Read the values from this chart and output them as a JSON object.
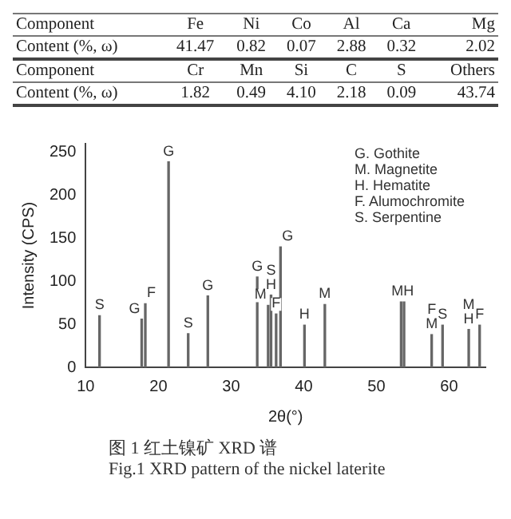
{
  "chart_data": [
    {
      "type": "other",
      "annotations": [
        "Component",
        "Fe",
        "Ni",
        "Co",
        "Al",
        "Ca",
        "Mg",
        "Content (%, ω)",
        "41.47",
        "0.82",
        "0.07",
        "2.88",
        "0.32",
        "2.02",
        "Component",
        "Cr",
        "Mn",
        "Si",
        "C",
        "S",
        "Others",
        "Content (%, ω)",
        "1.82",
        "0.49",
        "4.10",
        "2.18",
        "0.09",
        "43.74"
      ]
    },
    {
      "type": "bar",
      "title": "图 1  红土镍矿 XRD 谱",
      "subtitle": "Fig.1 XRD pattern of the nickel laterite",
      "xlabel": "2θ(°)",
      "ylabel": "Intensity (CPS)",
      "x": [
        11.9,
        17.7,
        18.2,
        21.4,
        24.1,
        26.8,
        33.6,
        35.1,
        35.5,
        36.2,
        36.8,
        40.1,
        42.9,
        53.4,
        53.8,
        57.6,
        59.1,
        62.7,
        64.2
      ],
      "values": [
        60,
        56,
        74,
        239,
        39,
        83,
        105,
        72,
        84,
        62,
        140,
        49,
        73,
        76,
        76,
        38,
        49,
        44,
        49
      ],
      "color": "#666666",
      "xlim": [
        10,
        65
      ],
      "xticks": [
        10,
        20,
        30,
        40,
        50,
        60
      ],
      "ylim": [
        0,
        260
      ],
      "yticks": [
        0,
        50,
        100,
        150,
        200,
        250
      ],
      "grid": false,
      "legend": false,
      "annotations": [
        "G. Gothite",
        "M. Magnetite",
        "H. Hematite",
        "F. Alumochromite",
        "S. Serpentine",
        {
          "text": "S",
          "x": 11.9,
          "y": 60
        },
        {
          "text": "G",
          "x": 17.7,
          "y": 56
        },
        {
          "text": "F",
          "x": 18.2,
          "y": 74
        },
        {
          "text": "G",
          "x": 21.4,
          "y": 239
        },
        {
          "text": "S",
          "x": 24.1,
          "y": 39
        },
        {
          "text": "G",
          "x": 26.8,
          "y": 83
        },
        {
          "text": "G",
          "x": 33.6,
          "y": 105
        },
        {
          "text": "M",
          "x": 35.1,
          "y": 72
        },
        {
          "text": "H",
          "x": 35.5,
          "y": 84
        },
        {
          "text": "S",
          "x": 35.5,
          "y": 84
        },
        {
          "text": "F",
          "x": 36.2,
          "y": 62
        },
        {
          "text": "G",
          "x": 36.8,
          "y": 140
        },
        {
          "text": "H",
          "x": 40.1,
          "y": 49
        },
        {
          "text": "M",
          "x": 42.9,
          "y": 73
        },
        {
          "text": "MH",
          "x": 53.6,
          "y": 76
        },
        {
          "text": "M",
          "x": 57.6,
          "y": 38
        },
        {
          "text": "F",
          "x": 57.6,
          "y": 38
        },
        {
          "text": "S",
          "x": 59.1,
          "y": 49
        },
        {
          "text": "H",
          "x": 62.7,
          "y": 44
        },
        {
          "text": "M",
          "x": 62.7,
          "y": 44
        },
        {
          "text": "F",
          "x": 64.2,
          "y": 49
        }
      ]
    }
  ]
}
